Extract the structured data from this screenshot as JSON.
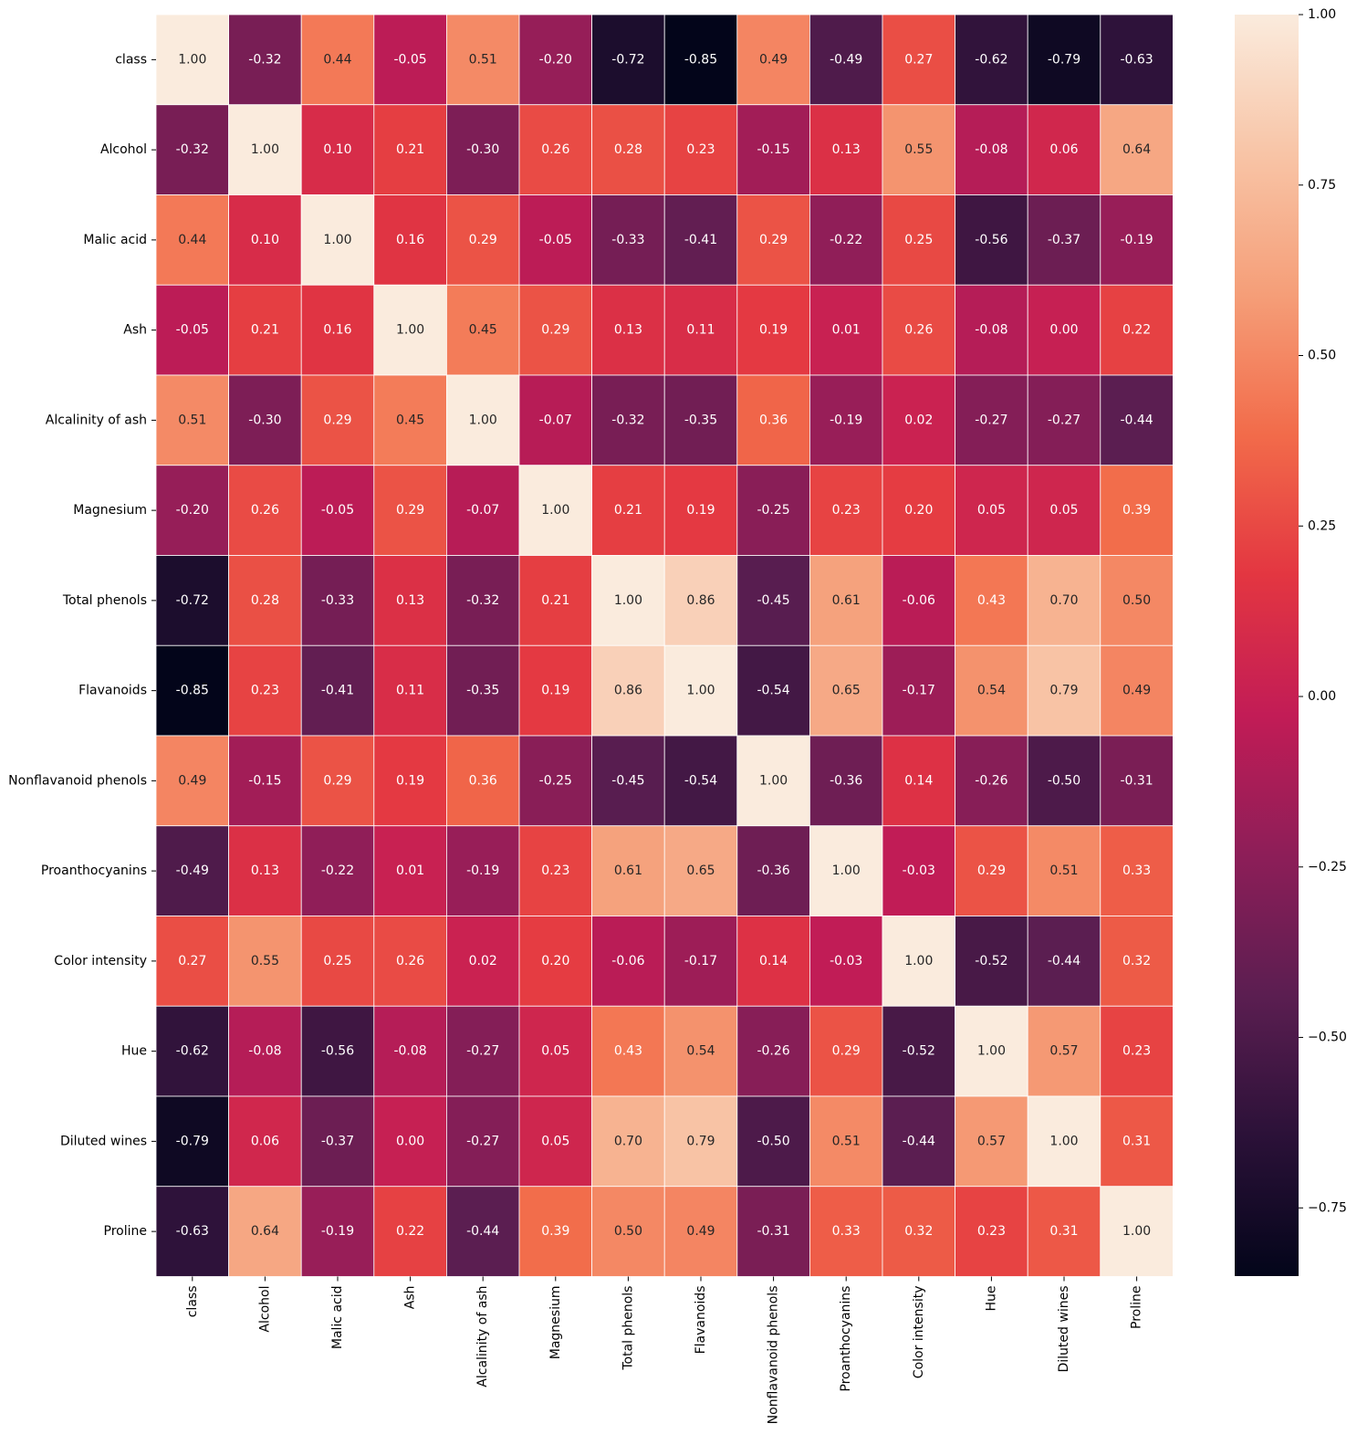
{
  "chart_data": {
    "type": "heatmap",
    "title": "",
    "xlabel": "",
    "ylabel": "",
    "labels": [
      "class",
      "Alcohol",
      "Malic acid",
      "Ash",
      "Alcalinity of ash",
      "Magnesium",
      "Total phenols",
      "Flavanoids",
      "Nonflavanoid phenols",
      "Proanthocyanins",
      "Color intensity",
      "Hue",
      "Diluted wines",
      "Proline"
    ],
    "values": [
      [
        1.0,
        -0.32,
        0.44,
        -0.05,
        0.51,
        -0.2,
        -0.72,
        -0.85,
        0.49,
        -0.49,
        0.27,
        -0.62,
        -0.79,
        -0.63
      ],
      [
        -0.32,
        1.0,
        0.1,
        0.21,
        -0.3,
        0.26,
        0.28,
        0.23,
        -0.15,
        0.13,
        0.55,
        -0.08,
        0.06,
        0.64
      ],
      [
        0.44,
        0.1,
        1.0,
        0.16,
        0.29,
        -0.05,
        -0.33,
        -0.41,
        0.29,
        -0.22,
        0.25,
        -0.56,
        -0.37,
        -0.19
      ],
      [
        -0.05,
        0.21,
        0.16,
        1.0,
        0.45,
        0.29,
        0.13,
        0.11,
        0.19,
        0.01,
        0.26,
        -0.08,
        0.0,
        0.22
      ],
      [
        0.51,
        -0.3,
        0.29,
        0.45,
        1.0,
        -0.07,
        -0.32,
        -0.35,
        0.36,
        -0.19,
        0.02,
        -0.27,
        -0.27,
        -0.44
      ],
      [
        -0.2,
        0.26,
        -0.05,
        0.29,
        -0.07,
        1.0,
        0.21,
        0.19,
        -0.25,
        0.23,
        0.2,
        0.05,
        0.05,
        0.39
      ],
      [
        -0.72,
        0.28,
        -0.33,
        0.13,
        -0.32,
        0.21,
        1.0,
        0.86,
        -0.45,
        0.61,
        -0.06,
        0.43,
        0.7,
        0.5
      ],
      [
        -0.85,
        0.23,
        -0.41,
        0.11,
        -0.35,
        0.19,
        0.86,
        1.0,
        -0.54,
        0.65,
        -0.17,
        0.54,
        0.79,
        0.49
      ],
      [
        0.49,
        -0.15,
        0.29,
        0.19,
        0.36,
        -0.25,
        -0.45,
        -0.54,
        1.0,
        -0.36,
        0.14,
        -0.26,
        -0.5,
        -0.31
      ],
      [
        -0.49,
        0.13,
        -0.22,
        0.01,
        -0.19,
        0.23,
        0.61,
        0.65,
        -0.36,
        1.0,
        -0.03,
        0.29,
        0.51,
        0.33
      ],
      [
        0.27,
        0.55,
        0.25,
        0.26,
        0.02,
        0.2,
        -0.06,
        -0.17,
        0.14,
        -0.03,
        1.0,
        -0.52,
        -0.44,
        0.32
      ],
      [
        -0.62,
        -0.08,
        -0.56,
        -0.08,
        -0.27,
        0.05,
        0.43,
        0.54,
        -0.26,
        0.29,
        -0.52,
        1.0,
        0.57,
        0.23
      ],
      [
        -0.79,
        0.06,
        -0.37,
        0.0,
        -0.27,
        0.05,
        0.7,
        0.79,
        -0.5,
        0.51,
        -0.44,
        0.57,
        1.0,
        0.31
      ],
      [
        -0.63,
        0.64,
        -0.19,
        0.22,
        -0.44,
        0.39,
        0.5,
        0.49,
        -0.31,
        0.33,
        0.32,
        0.23,
        0.31,
        1.0
      ]
    ],
    "value_format": "2 decimals",
    "color_range": [
      -0.85,
      1.0
    ],
    "colormap": "rocket",
    "colormap_stops": [
      "#03051a",
      "#2b1138",
      "#5b1e51",
      "#8d1e58",
      "#c21c56",
      "#e33641",
      "#f26b4a",
      "#f59e78",
      "#f8c4a6",
      "#faebdd"
    ],
    "colorbar_ticks": [
      1.0,
      0.75,
      0.5,
      0.25,
      0.0,
      -0.25,
      -0.5,
      -0.75
    ],
    "colorbar_tick_labels": [
      "1.00",
      "0.75",
      "0.50",
      "0.25",
      "0.00",
      "−0.25",
      "−0.50",
      "−0.75"
    ],
    "cell_border_color": "#ffffff",
    "grid": false,
    "legend": "colorbar-right"
  }
}
